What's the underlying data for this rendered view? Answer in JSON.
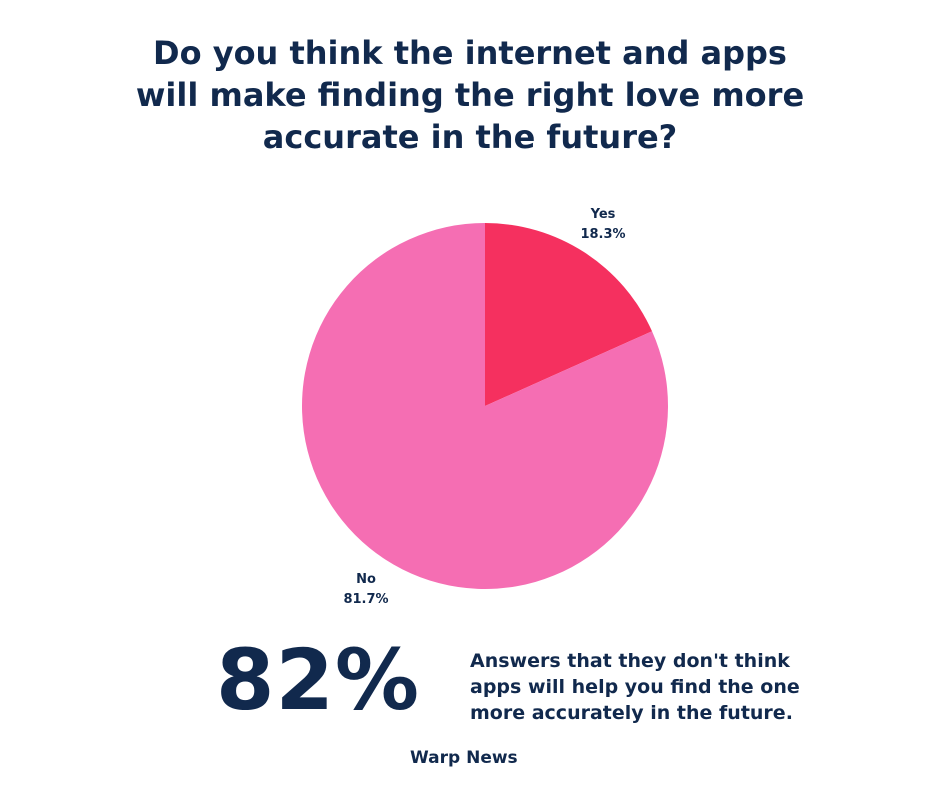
{
  "title": "Do you think the internet and apps\nwill make finding the right love more\naccurate in the future?",
  "chart_data": {
    "type": "pie",
    "title": "Do you think the internet and apps will make finding the right love more accurate in the future?",
    "slices": [
      {
        "label": "Yes",
        "value": 18.3,
        "display": "18.3%",
        "color": "#f5305f"
      },
      {
        "label": "No",
        "value": 81.7,
        "display": "81.7%",
        "color": "#f56eb3"
      }
    ]
  },
  "stat": {
    "value": "82%",
    "description": "Answers that they don't think\napps will help you find the one\nmore accurately in the future."
  },
  "source": "Warp News"
}
